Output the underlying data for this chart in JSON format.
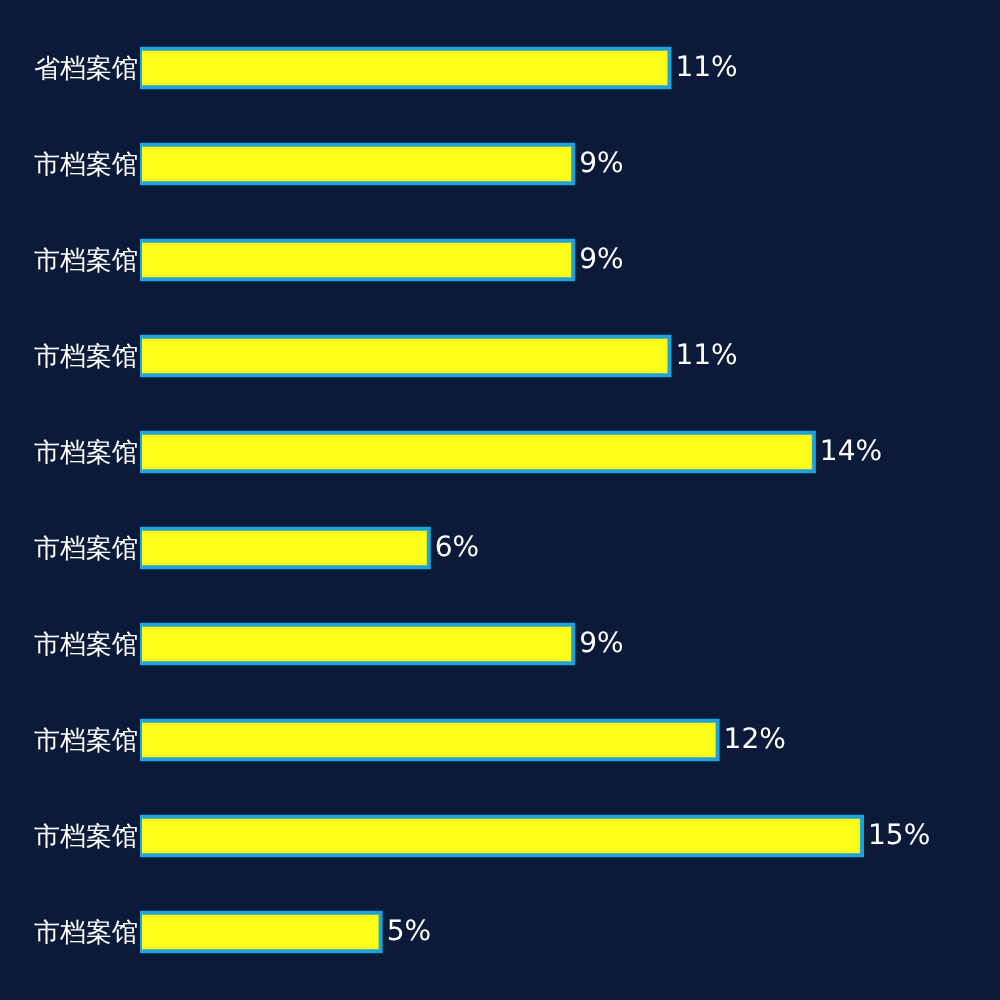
{
  "chart_data": {
    "type": "bar",
    "orientation": "horizontal",
    "categories": [
      "省档案馆",
      "市档案馆",
      "市档案馆",
      "市档案馆",
      "市档案馆",
      "市档案馆",
      "市档案馆",
      "市档案馆",
      "市档案馆",
      "市档案馆"
    ],
    "values": [
      11,
      9,
      9,
      11,
      14,
      6,
      9,
      12,
      15,
      5
    ],
    "value_labels": [
      "11%",
      "9%",
      "9%",
      "11%",
      "14%",
      "6%",
      "9%",
      "12%",
      "15%",
      "5%"
    ],
    "color": "#ffff1a"
  }
}
